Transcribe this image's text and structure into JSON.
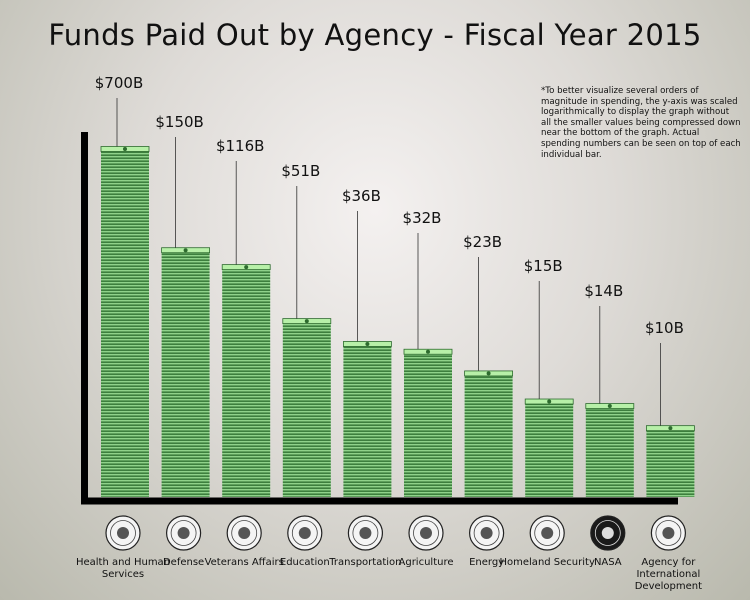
{
  "chart_data": {
    "type": "bar",
    "title": "Funds Paid Out by Agency - Fiscal Year 2015",
    "note": "*To better visualize several orders of magnitude in spending, the y-axis was scaled logarithmically to display the graph without all the smaller values being compressed down near the bottom of the graph. Actual spending numbers can be seen on top of each individual bar.",
    "y_scale": "log",
    "categories": [
      "Health and Human Services",
      "Defense",
      "Veterans Affairs",
      "Education",
      "Transportation",
      "Agriculture",
      "Energy",
      "Homeland Security",
      "NASA",
      "Agency for International Development"
    ],
    "values": [
      700,
      150,
      116,
      51,
      36,
      32,
      23,
      15,
      14,
      10
    ],
    "value_labels": [
      "$700B",
      "$150B",
      "$116B",
      "$51B",
      "$36B",
      "$32B",
      "$23B",
      "$15B",
      "$14B",
      "$10B"
    ],
    "icons": [
      "hhs-seal-icon",
      "defense-seal-icon",
      "va-seal-icon",
      "education-seal-icon",
      "transportation-seal-icon",
      "agriculture-seal-icon",
      "energy-seal-icon",
      "homeland-security-seal-icon",
      "nasa-logo-icon",
      "usaid-seal-icon"
    ],
    "bar_color": "#4f9a4e",
    "axis_color": "#000000"
  }
}
